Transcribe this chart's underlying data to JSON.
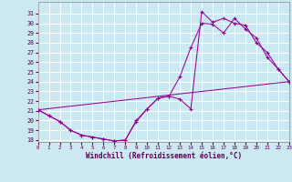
{
  "xlabel": "Windchill (Refroidissement éolien,°C)",
  "bg_color": "#cce8f0",
  "grid_color": "#ffffff",
  "line_color": "#990099",
  "xlim": [
    0,
    23
  ],
  "ylim": [
    17.8,
    32.2
  ],
  "xticks": [
    0,
    1,
    2,
    3,
    4,
    5,
    6,
    7,
    8,
    9,
    10,
    11,
    12,
    13,
    14,
    15,
    16,
    17,
    18,
    19,
    20,
    21,
    22,
    23
  ],
  "yticks": [
    18,
    19,
    20,
    21,
    22,
    23,
    24,
    25,
    26,
    27,
    28,
    29,
    30,
    31
  ],
  "curve1_x": [
    0,
    1,
    2,
    3,
    4,
    5,
    6,
    7,
    8,
    9,
    10,
    11,
    12,
    13,
    14,
    15,
    16,
    17,
    18,
    19,
    20,
    21,
    22,
    23
  ],
  "curve1_y": [
    21.1,
    20.5,
    19.9,
    19.0,
    18.5,
    18.3,
    18.1,
    17.9,
    18.0,
    19.9,
    21.2,
    22.3,
    22.5,
    24.5,
    27.5,
    30.0,
    29.9,
    29.0,
    30.5,
    29.4,
    28.5,
    26.5,
    25.3,
    24.0
  ],
  "curve2_x": [
    0,
    1,
    2,
    3,
    4,
    5,
    6,
    7,
    8,
    9,
    10,
    11,
    12,
    13,
    14,
    15,
    16,
    17,
    18,
    19,
    20,
    21,
    22,
    23
  ],
  "curve2_y": [
    21.1,
    20.5,
    19.9,
    19.0,
    18.5,
    18.3,
    18.1,
    17.9,
    18.0,
    20.0,
    21.2,
    22.3,
    22.5,
    22.2,
    21.2,
    31.2,
    30.1,
    30.5,
    30.0,
    29.8,
    28.0,
    27.0,
    25.3,
    24.0
  ],
  "curve3_x": [
    0,
    23
  ],
  "curve3_y": [
    21.1,
    24.0
  ]
}
